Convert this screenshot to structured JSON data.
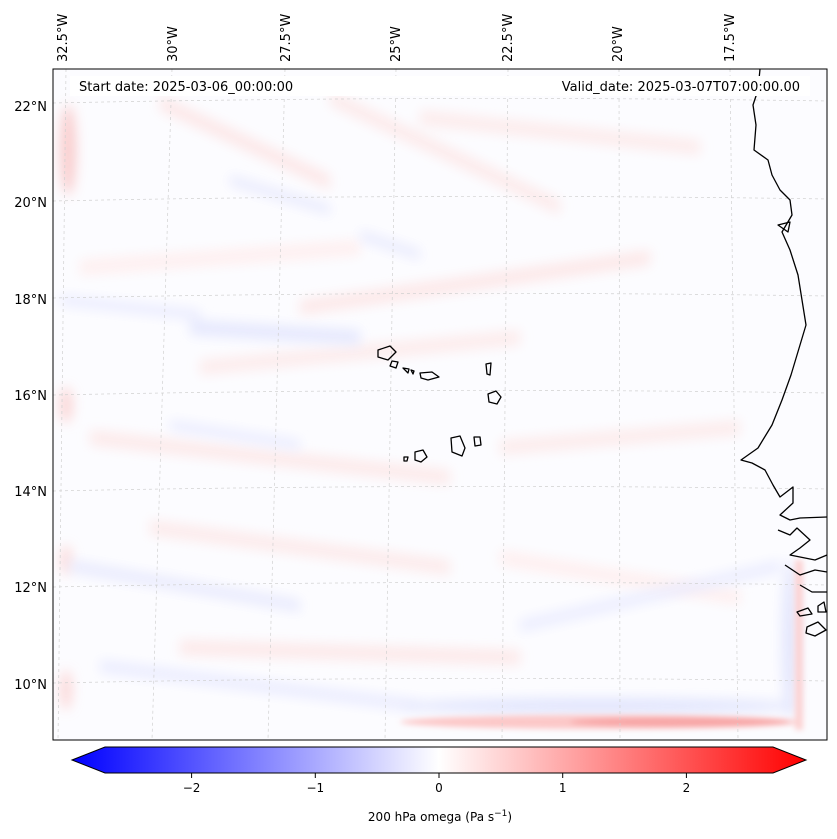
{
  "map": {
    "start_date": "Start date: 2025-03-06_00:00:00",
    "valid_date": "Valid_date: 2025-03-07T07:00:00.00",
    "lon_labels": [
      "32.5°W",
      "30°W",
      "27.5°W",
      "25°W",
      "22.5°W",
      "20°W",
      "17.5°W"
    ],
    "lat_labels": [
      "22°N",
      "20°N",
      "18°N",
      "16°N",
      "14°N",
      "12°N",
      "10°N"
    ],
    "colors": {
      "negative": "#0000ff",
      "neutral": "#ffffff",
      "positive": "#ff0000",
      "coast": "#000000"
    }
  },
  "colorbar": {
    "label": "200 hPa omega (Pa s",
    "label_sup": "−1",
    "label_end": ")",
    "min": -2.7,
    "max": 2.7,
    "ticks": [
      -2,
      -1,
      0,
      1,
      2
    ],
    "tick_labels": [
      "−2",
      "−1",
      "0",
      "1",
      "2"
    ]
  }
}
